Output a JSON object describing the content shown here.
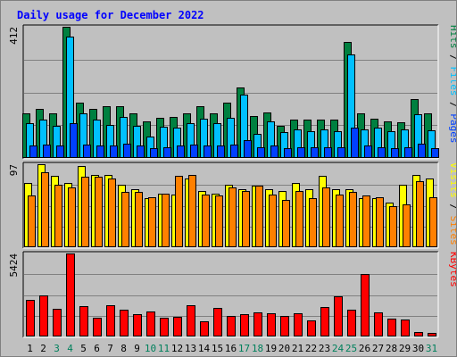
{
  "chart_data": {
    "type": "bar",
    "title": "Daily usage for December 2022",
    "categories": [
      "1",
      "2",
      "3",
      "4",
      "5",
      "6",
      "7",
      "8",
      "9",
      "10",
      "11",
      "12",
      "13",
      "14",
      "15",
      "16",
      "17",
      "18",
      "19",
      "20",
      "21",
      "22",
      "23",
      "24",
      "25",
      "26",
      "27",
      "28",
      "29",
      "30",
      "31"
    ],
    "weekend_days": [
      "3",
      "4",
      "10",
      "11",
      "17",
      "18",
      "24",
      "25",
      "31"
    ],
    "panels": [
      {
        "id": "top",
        "ymax": 412,
        "ymax_label": "412",
        "legend": [
          "Pages",
          "Files",
          "Hits"
        ],
        "series": [
          {
            "name": "Hits",
            "color": "#008040",
            "values": [
              140,
              155,
              140,
              412,
              175,
              155,
              162,
              162,
              140,
              115,
              125,
              130,
              140,
              162,
              140,
              175,
              222,
              132,
              142,
              100,
              120,
              120,
              120,
              120,
              365,
              140,
              122,
              115,
              112,
              185,
              140
            ]
          },
          {
            "name": "Files",
            "color": "#00c0ff",
            "values": [
              108,
              120,
              100,
              380,
              140,
              120,
              105,
              130,
              100,
              68,
              98,
              95,
              108,
              122,
              110,
              125,
              200,
              75,
              115,
              80,
              90,
              85,
              90,
              85,
              325,
              90,
              95,
              85,
              90,
              138,
              88
            ]
          },
          {
            "name": "Pages",
            "color": "#0040ff",
            "values": [
              40,
              42,
              38,
              108,
              42,
              38,
              40,
              45,
              38,
              32,
              35,
              38,
              42,
              40,
              38,
              42,
              55,
              35,
              38,
              32,
              35,
              35,
              35,
              35,
              95,
              38,
              35,
              32,
              35,
              45,
              32
            ]
          }
        ]
      },
      {
        "id": "middle",
        "ymax": 97,
        "ymax_label": "97",
        "legend": [
          "Sites",
          "Visits"
        ],
        "series": [
          {
            "name": "Visits",
            "color": "#ffff00",
            "values": [
              75,
              97,
              83,
              75,
              95,
              85,
              85,
              73,
              68,
              57,
              63,
              62,
              80,
              66,
              63,
              73,
              68,
              72,
              68,
              66,
              75,
              68,
              83,
              68,
              68,
              57,
              57,
              52,
              73,
              85,
              80
            ]
          },
          {
            "name": "Sites",
            "color": "#ff8000",
            "values": [
              60,
              88,
              73,
              70,
              82,
              82,
              80,
              65,
              65,
              58,
              63,
              83,
              85,
              62,
              60,
              70,
              66,
              72,
              62,
              55,
              66,
              57,
              70,
              62,
              65,
              60,
              58,
              48,
              50,
              77,
              58
            ]
          }
        ]
      },
      {
        "id": "bottom",
        "ymax": 5424,
        "ymax_label": "5424",
        "legend": [
          "KBytes"
        ],
        "series": [
          {
            "name": "KBytes",
            "color": "#ff0000",
            "values": [
              2400,
              2700,
              1800,
              5424,
              2000,
              1200,
              2050,
              1750,
              1450,
              1650,
              1200,
              1300,
              2050,
              1000,
              1850,
              1350,
              1450,
              1550,
              1500,
              1350,
              1500,
              1050,
              1900,
              2600,
              1750,
              4100,
              1600,
              1150,
              1100,
              280,
              240
            ]
          }
        ]
      }
    ],
    "grid": true,
    "legend_position": "right"
  }
}
